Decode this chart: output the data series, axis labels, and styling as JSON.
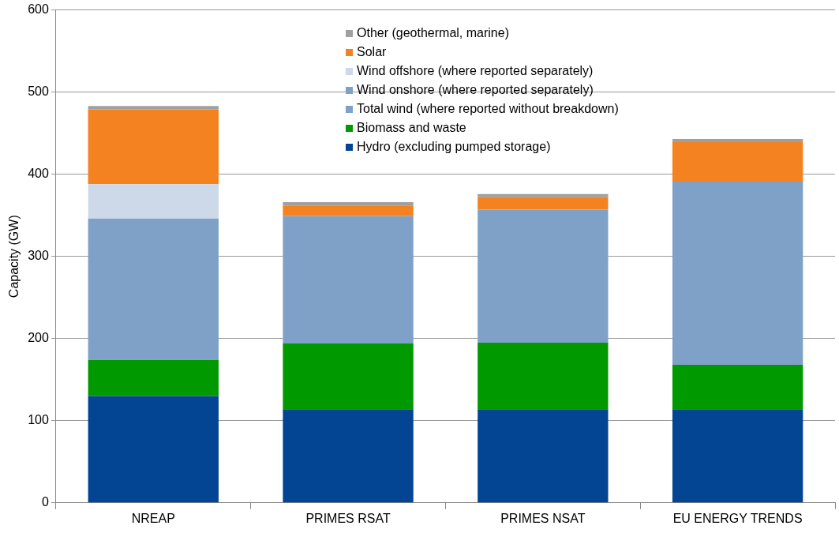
{
  "chart_data": {
    "type": "bar",
    "stacked": true,
    "ylabel": "Capacity (GW)",
    "categories": [
      "NREAP",
      "PRIMES RSAT",
      "PRIMES NSAT",
      "EU ENERGY TRENDS"
    ],
    "ylim": [
      0,
      600
    ],
    "yticks": [
      0,
      100,
      200,
      300,
      400,
      500,
      600
    ],
    "grid": "y",
    "legend": "top",
    "series": [
      {
        "name": "Hydro (excluding pumped storage)",
        "color": "#034592",
        "values": [
          130,
          114,
          114,
          114
        ]
      },
      {
        "name": "Biomass and waste",
        "color": "#009900",
        "values": [
          44,
          80,
          81,
          54
        ]
      },
      {
        "name": "Total wind (where reported without breakdown)",
        "color": "#7fa1c8",
        "values": [
          null,
          155,
          162,
          223
        ]
      },
      {
        "name": "Wind onshore (where reported separately)",
        "color": "#7fa1c8",
        "values": [
          172,
          null,
          null,
          null
        ]
      },
      {
        "name": "Wind offshore (where reported separately)",
        "color": "#cdd8e8",
        "values": [
          42,
          null,
          null,
          null
        ]
      },
      {
        "name": "Solar",
        "color": "#f58220",
        "values": [
          91,
          13,
          15,
          48
        ]
      },
      {
        "name": "Other (geothermal, marine)",
        "color": "#a0a0a0",
        "values": [
          4,
          4,
          4,
          4
        ]
      }
    ]
  }
}
